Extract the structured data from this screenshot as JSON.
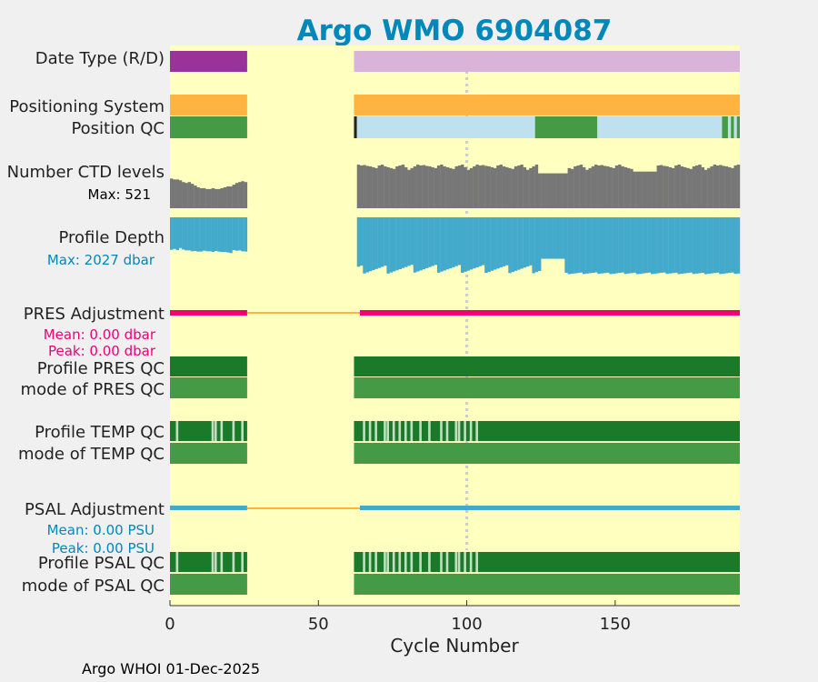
{
  "chart_data": {
    "type": "bar",
    "title": "Argo WMO 6904087",
    "xlabel": "Cycle Number",
    "xlim": [
      0,
      192
    ],
    "xticks": [
      "0",
      "50",
      "100",
      "150"
    ],
    "xtick_values": [
      0,
      50,
      100,
      150
    ],
    "footer": "Argo WHOI 01-Dec-2025",
    "cycle_ranges": [
      [
        0,
        26
      ],
      [
        63,
        192
      ]
    ],
    "gap": [
      26,
      63
    ],
    "marker_cycle": 100,
    "rows": {
      "date_type": {
        "label": "Date Type (R/D)",
        "segments": [
          {
            "from": 0,
            "to": 26,
            "color": "#993399"
          },
          {
            "from": 62,
            "to": 192,
            "color": "#d9b3d9"
          }
        ]
      },
      "positioning": {
        "label": "Positioning System",
        "segments": [
          {
            "from": 0,
            "to": 26,
            "color": "#ffb340"
          },
          {
            "from": 62,
            "to": 192,
            "color": "#ffb340"
          }
        ]
      },
      "position_qc": {
        "label": "Position QC",
        "segments": [
          {
            "from": 0,
            "to": 26,
            "color": "#459a45"
          },
          {
            "from": 62,
            "to": 63,
            "color": "#222222"
          },
          {
            "from": 63,
            "to": 123,
            "color": "#bfe0ee"
          },
          {
            "from": 123,
            "to": 144,
            "color": "#459a45"
          },
          {
            "from": 144,
            "to": 186,
            "color": "#bfe0ee"
          },
          {
            "from": 186,
            "to": 188,
            "color": "#459a45"
          },
          {
            "from": 188,
            "to": 189,
            "color": "#bfe0ee"
          },
          {
            "from": 189,
            "to": 190,
            "color": "#459a45"
          },
          {
            "from": 190,
            "to": 191,
            "color": "#bfe0ee"
          },
          {
            "from": 191,
            "to": 192,
            "color": "#459a45"
          }
        ]
      },
      "ctd_levels": {
        "label": "Number CTD levels",
        "note": "Max: 521",
        "max": 521,
        "values_a": [
          340,
          330,
          330,
          320,
          300,
          290,
          300,
          280,
          260,
          240,
          230,
          230,
          220,
          220,
          230,
          220,
          220,
          230,
          240,
          250,
          250,
          270,
          290,
          300,
          310,
          300
        ],
        "values_b_pattern": [
          500,
          490,
          495,
          485,
          480,
          470,
          460,
          490,
          500,
          480,
          470,
          460,
          450,
          480,
          490,
          500,
          470,
          440,
          460,
          480
        ],
        "values_c": {
          "from": 124,
          "to": 134,
          "value": 400
        },
        "values_d": {
          "from": 156,
          "to": 164,
          "value": 420
        }
      },
      "profile_depth": {
        "label": "Profile Depth",
        "note": "Max: 2027 dbar",
        "max": 2027,
        "values_a": [
          1580,
          1520,
          1600,
          1460,
          1560,
          1620,
          1620,
          1680,
          1660,
          1700,
          1700,
          1640,
          1680,
          1680,
          1720,
          1660,
          1700,
          1720,
          1720,
          1760,
          1800,
          1600,
          1640,
          1620,
          1680,
          1700
        ],
        "min_b": 1400,
        "max_b": 1850
      },
      "pres_adj": {
        "label": "PRES Adjustment",
        "mean": "Mean: 0.00 dbar",
        "peak": "Peak: 0.00 dbar"
      },
      "pres_qc": {
        "label": "Profile PRES QC"
      },
      "pres_mode": {
        "label": "mode of PRES QC"
      },
      "temp_qc": {
        "label": "Profile TEMP QC",
        "light_cycles": [
          2,
          14,
          15,
          17,
          21,
          24,
          65,
          67,
          69,
          72,
          73,
          75,
          77,
          79,
          81,
          84,
          87,
          91,
          93,
          96,
          97,
          99,
          101,
          103
        ]
      },
      "temp_mode": {
        "label": "mode of TEMP QC"
      },
      "psal_adj": {
        "label": "PSAL Adjustment",
        "mean": "Mean: 0.00 PSU",
        "peak": "Peak: 0.00 PSU"
      },
      "psal_qc": {
        "label": "Profile PSAL QC",
        "light_cycles": [
          2,
          14,
          15,
          17,
          21,
          24,
          65,
          67,
          69,
          72,
          73,
          75,
          77,
          79,
          81,
          84,
          87,
          91,
          93,
          96,
          97,
          99,
          101,
          103
        ]
      },
      "psal_mode": {
        "label": "mode of PSAL QC"
      }
    },
    "colors": {
      "background": "#ffffc0",
      "title": "#0088bb",
      "ctd_bar": "#777777",
      "depth_bar": "#44aacc",
      "pres_adj": "#ee0077",
      "psal_adj": "#44aacc",
      "adj_gap": "#ffb340",
      "qc_dark": "#1a7a2a",
      "qc_mode": "#459a45",
      "qc_light": "#bfe0bf",
      "marker": "#cccccc",
      "depth_note": "#0088bb"
    }
  }
}
